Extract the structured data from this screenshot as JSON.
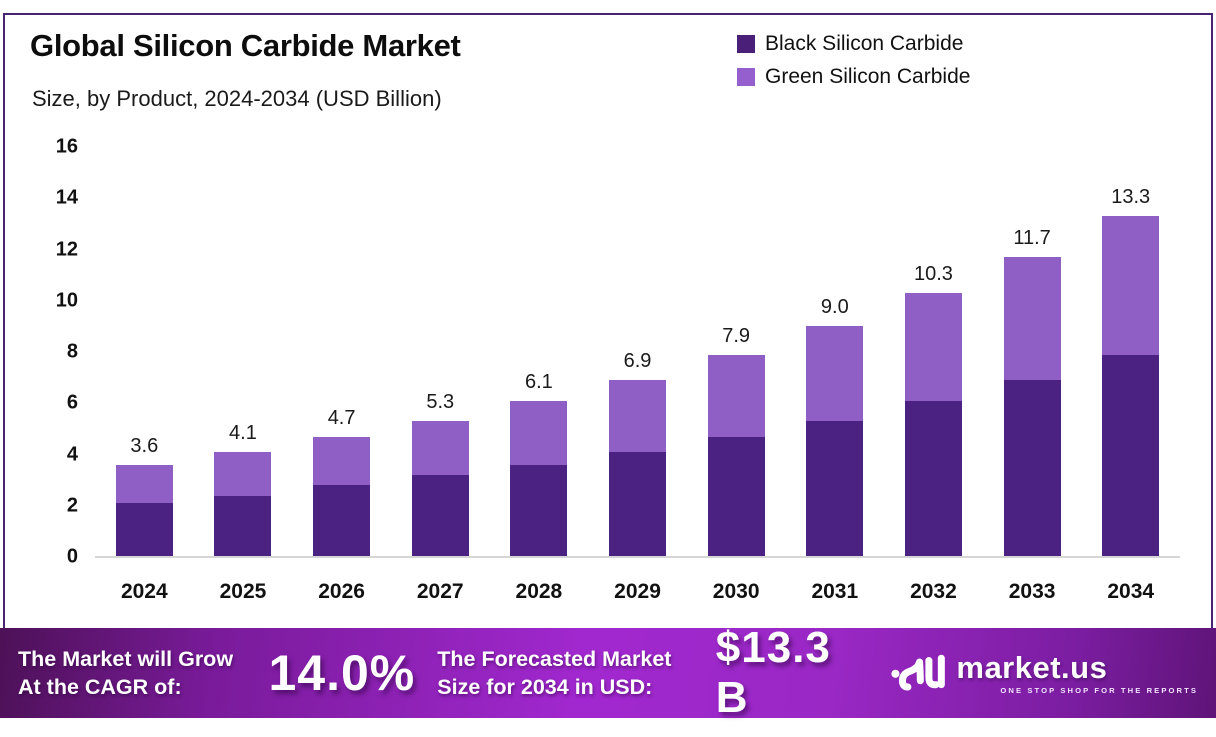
{
  "header": {
    "title": "Global Silicon Carbide Market",
    "subtitle": "Size, by Product, 2024-2034 (USD Billion)"
  },
  "legend": {
    "items": [
      {
        "label": "Black Silicon Carbide",
        "color": "#4A1F78"
      },
      {
        "label": "Green Silicon Carbide",
        "color": "#9560CE"
      }
    ]
  },
  "chart_data": {
    "type": "bar",
    "stacked": true,
    "title": "Global Silicon Carbide Market Size, by Product, 2024-2034 (USD Billion)",
    "categories": [
      "2024",
      "2025",
      "2026",
      "2027",
      "2028",
      "2029",
      "2030",
      "2031",
      "2032",
      "2033",
      "2034"
    ],
    "series": [
      {
        "name": "Black Silicon Carbide",
        "color": "#4B2182",
        "values": [
          2.1,
          2.4,
          2.8,
          3.2,
          3.6,
          4.1,
          4.7,
          5.3,
          6.1,
          6.9,
          7.9
        ]
      },
      {
        "name": "Green Silicon Carbide",
        "color": "#8F5FC6",
        "values": [
          1.5,
          1.7,
          1.9,
          2.1,
          2.5,
          2.8,
          3.2,
          3.7,
          4.2,
          4.8,
          5.4
        ]
      }
    ],
    "totals": [
      3.6,
      4.1,
      4.7,
      5.3,
      6.1,
      6.9,
      7.9,
      9.0,
      10.3,
      11.7,
      13.3
    ],
    "total_labels": [
      "3.6",
      "4.1",
      "4.7",
      "5.3",
      "6.1",
      "6.9",
      "7.9",
      "9.0",
      "10.3",
      "11.7",
      "13.3"
    ],
    "xlabel": "",
    "ylabel": "",
    "ylim": [
      0,
      16
    ],
    "yticks": [
      0,
      2,
      4,
      6,
      8,
      10,
      12,
      14,
      16
    ],
    "grid": false,
    "legend_position": "top-right"
  },
  "banner": {
    "cagr_label_line1": "The Market will Grow",
    "cagr_label_line2": "At the CAGR of:",
    "cagr_value": "14.0%",
    "forecast_label_line1": "The Forecasted Market",
    "forecast_label_line2": "Size for 2034 in USD:",
    "forecast_value": "$13.3 B",
    "brand": {
      "name": "market.us",
      "tagline": "ONE STOP SHOP FOR THE REPORTS"
    }
  },
  "colors": {
    "frame_border": "#4A2472",
    "axis_line": "#D6D6D6",
    "banner_gradient": [
      "#4D1157",
      "#7A1B9B",
      "#A128CF",
      "#9A28C5",
      "#7B1DA1",
      "#5F1478"
    ]
  }
}
